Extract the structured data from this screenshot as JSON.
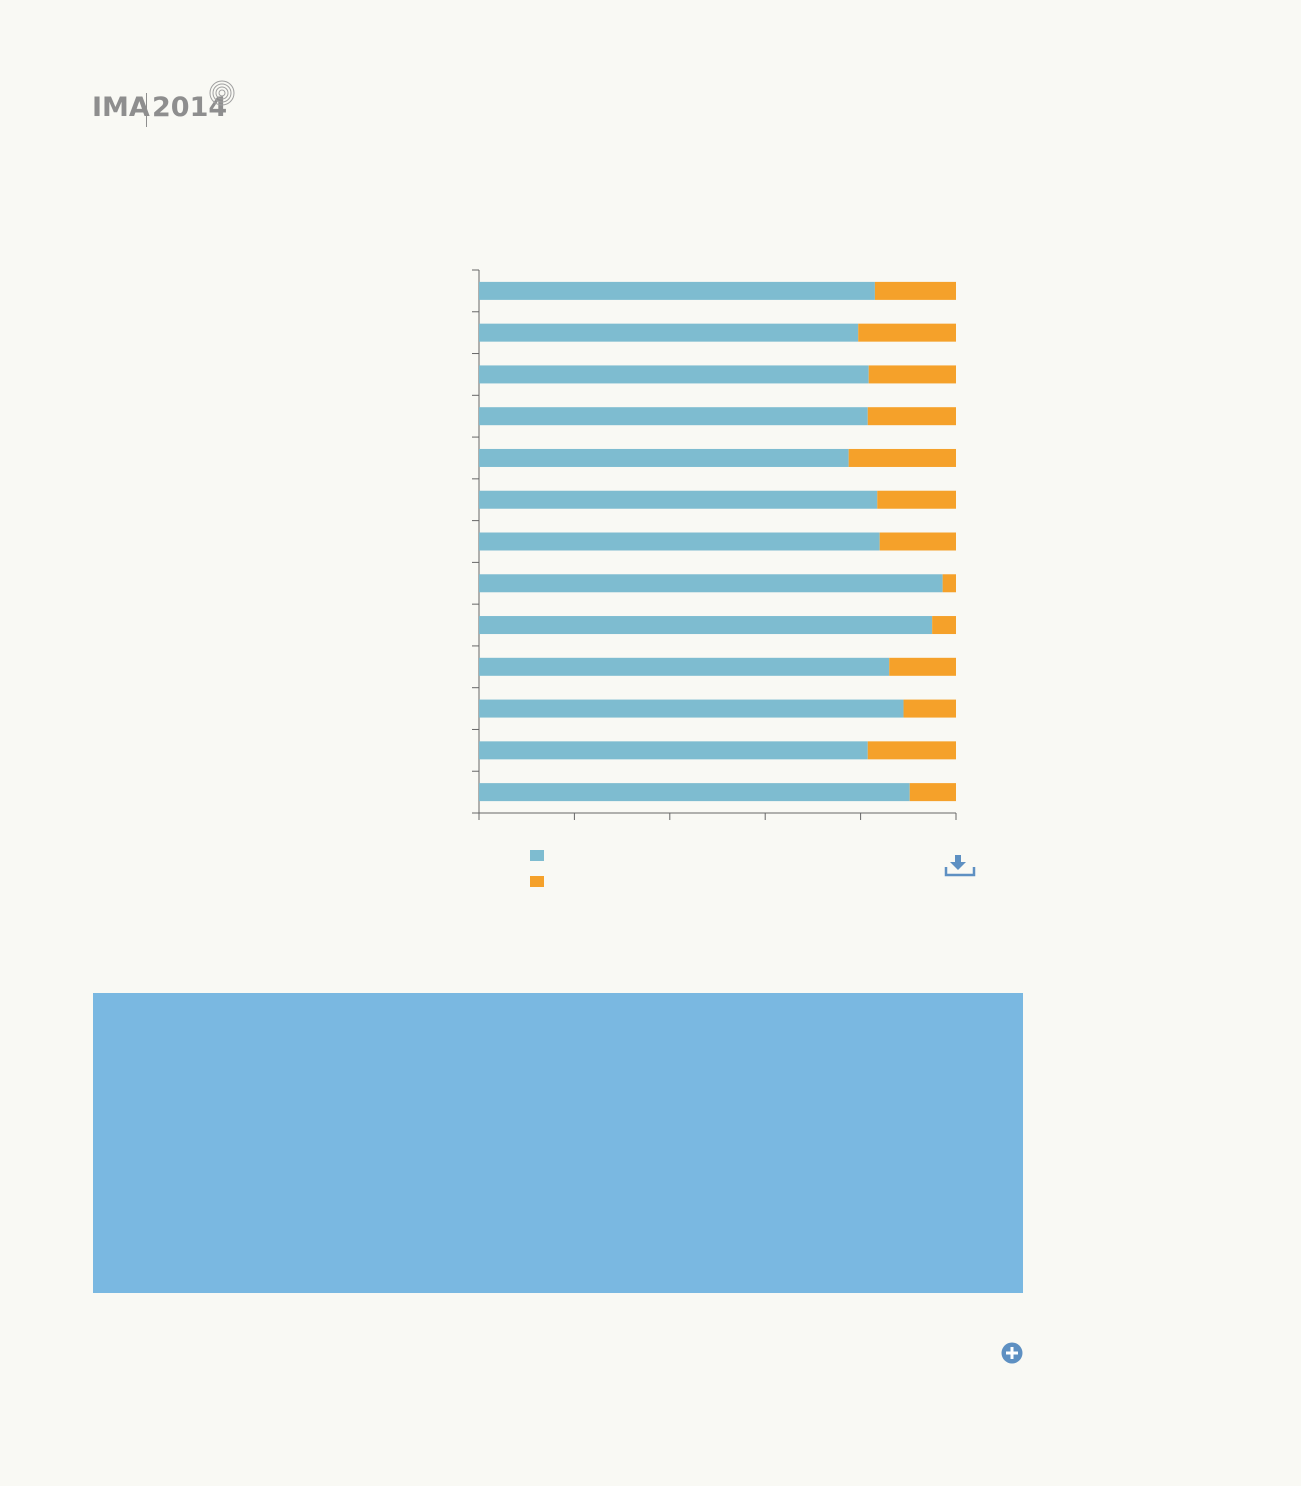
{
  "logo": {
    "brand": "IMA",
    "year": "2014"
  },
  "colors": {
    "series1": "#7ebcd0",
    "series2": "#f5a12a",
    "axis": "#666666",
    "panel": "#7ab8e1",
    "icon": "#5e90c2"
  },
  "icons": {
    "download": "download-icon",
    "expand": "plus-circle-icon"
  },
  "chart_data": {
    "type": "bar",
    "orientation": "horizontal",
    "stacked": true,
    "xlim": [
      0,
      100
    ],
    "categories": [
      "",
      "",
      "",
      "",
      "",
      "",
      "",
      "",
      "",
      "",
      "",
      "",
      ""
    ],
    "series": [
      {
        "values": [
          83,
          79.5,
          81.7,
          81.5,
          77.5,
          83.5,
          84,
          97.2,
          95,
          86,
          89,
          81.5,
          90.3
        ]
      },
      {
        "values": [
          17,
          20.5,
          18.3,
          18.5,
          22.5,
          16.5,
          16,
          2.8,
          5,
          14,
          11,
          18.5,
          9.7
        ]
      }
    ],
    "legend": "bottom-left",
    "grid": false
  }
}
